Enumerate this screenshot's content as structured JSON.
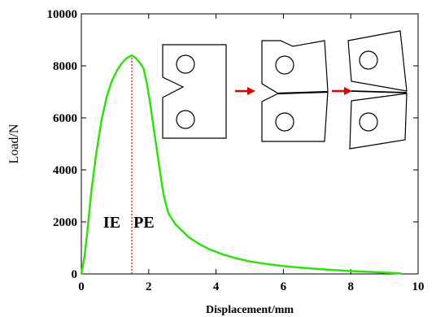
{
  "chart_data": {
    "type": "line",
    "title": "",
    "xlabel": "Displacement/mm",
    "ylabel": "Load/N",
    "xlim": [
      0,
      10
    ],
    "ylim": [
      0,
      10000
    ],
    "x_ticks": [
      "0",
      "2",
      "4",
      "6",
      "8",
      "10"
    ],
    "y_ticks": [
      "0",
      "2000",
      "4000",
      "6000",
      "8000",
      "10000"
    ],
    "grid": false,
    "line_color": "#33dd11",
    "divider_color": "#dd0000",
    "divider_x": 1.5,
    "series": [
      {
        "x": [
          0,
          0.1,
          0.2,
          0.3,
          0.45,
          0.6,
          0.75,
          0.9,
          1.05,
          1.2,
          1.35,
          1.5,
          1.62,
          1.75,
          1.85,
          1.95,
          2.05,
          2.15,
          2.25,
          2.35,
          2.45,
          2.55,
          2.6,
          2.8,
          3.0,
          3.2,
          3.5,
          3.8,
          4.2,
          4.6,
          5.0,
          5.5,
          6.0,
          6.5,
          7.0,
          7.5,
          8.0,
          8.5,
          9.0,
          9.5
        ],
        "y": [
          0,
          700,
          1900,
          3200,
          4700,
          5900,
          6800,
          7400,
          7800,
          8100,
          8300,
          8400,
          8300,
          8100,
          7900,
          7300,
          6500,
          5600,
          4700,
          3800,
          3000,
          2500,
          2300,
          1900,
          1650,
          1400,
          1150,
          950,
          750,
          600,
          480,
          380,
          300,
          240,
          190,
          150,
          110,
          80,
          50,
          20
        ]
      }
    ],
    "annotations": [
      {
        "text": "IE",
        "x": 0.65,
        "y": 2000
      },
      {
        "text": "PE",
        "x": 1.55,
        "y": 2000
      }
    ]
  }
}
